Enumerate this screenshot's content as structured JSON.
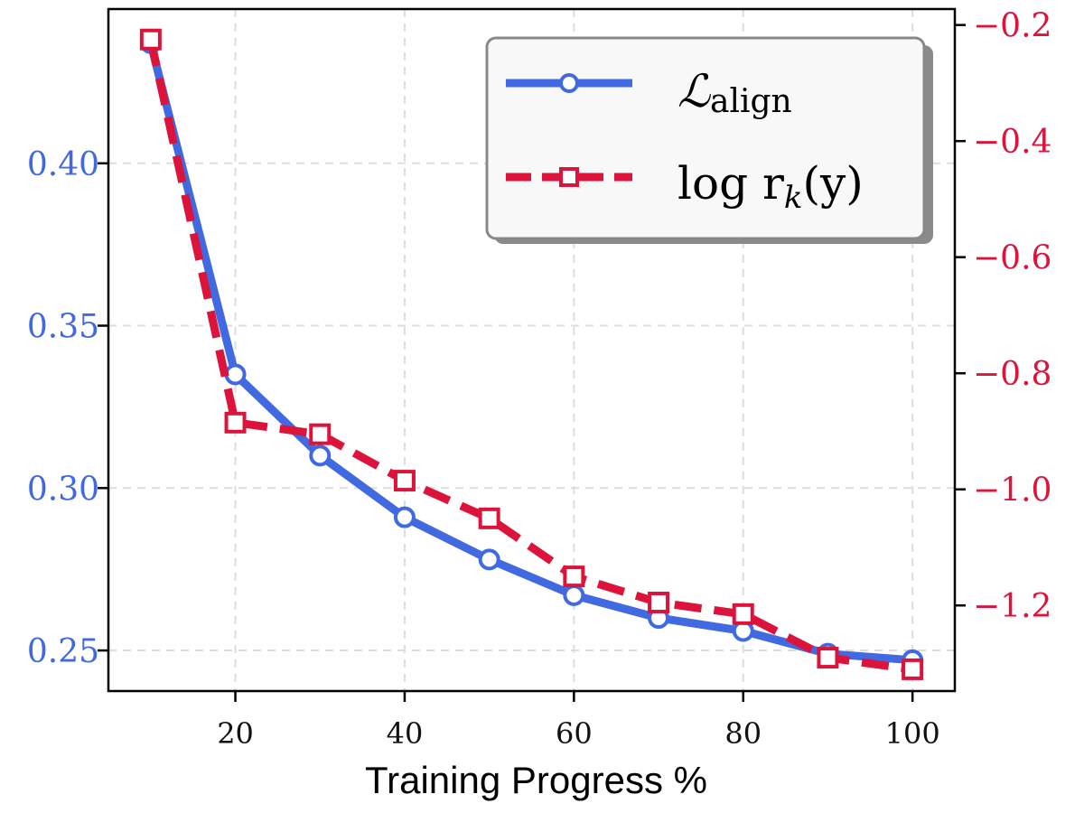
{
  "chart_data": {
    "type": "line",
    "xlabel": "Training Progress %",
    "x": [
      10,
      20,
      30,
      40,
      50,
      60,
      70,
      80,
      90,
      100
    ],
    "xticks": [
      20,
      40,
      60,
      80,
      100
    ],
    "xlim": [
      5,
      105
    ],
    "grid": true,
    "legend_position": "top-right",
    "series": [
      {
        "name": "L_align",
        "label_main": "ℒ",
        "label_sub": "align",
        "axis": "left",
        "color": "#4169e1",
        "marker": "circle",
        "line_style": "solid",
        "values": [
          0.437,
          0.335,
          0.31,
          0.291,
          0.278,
          0.267,
          0.26,
          0.256,
          0.249,
          0.247
        ]
      },
      {
        "name": "log r_k(y)",
        "label_main": "log r",
        "label_sub": "k",
        "label_tail": "(y)",
        "axis": "right",
        "color": "#dc143c",
        "marker": "square",
        "line_style": "dashed",
        "values": [
          -0.225,
          -0.885,
          -0.905,
          -0.985,
          -1.05,
          -1.15,
          -1.195,
          -1.215,
          -1.29,
          -1.31
        ]
      }
    ],
    "y_left": {
      "ticks": [
        0.25,
        0.3,
        0.35,
        0.4
      ],
      "tick_labels": [
        "0.25",
        "0.30",
        "0.35",
        "0.40"
      ],
      "ylim": [
        0.2375,
        0.4475
      ],
      "color": "#4169e1"
    },
    "y_right": {
      "ticks": [
        -0.2,
        -0.4,
        -0.6,
        -0.8,
        -1.0,
        -1.2
      ],
      "tick_labels": [
        "−0.2",
        "−0.4",
        "−0.6",
        "−0.8",
        "−1.0",
        "−1.2"
      ],
      "ylim": [
        -1.3475,
        -0.1725
      ],
      "color": "#dc143c"
    }
  }
}
